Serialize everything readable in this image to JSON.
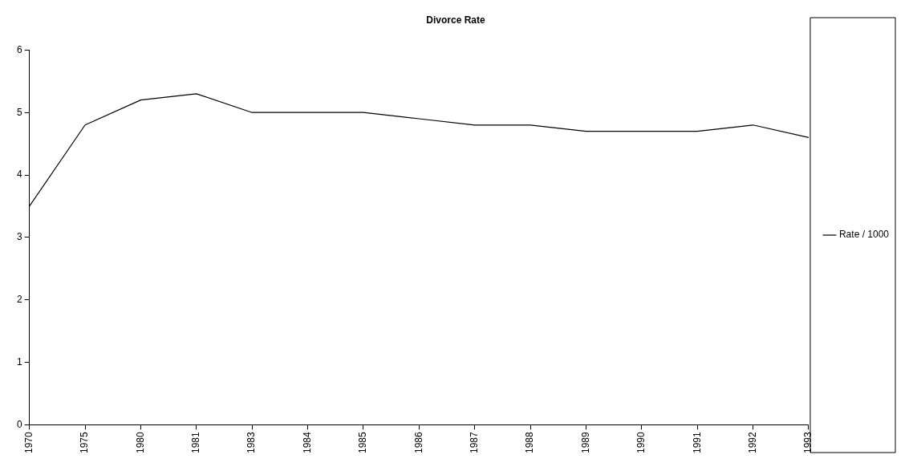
{
  "chart_data": {
    "type": "line",
    "title": "Divorce Rate",
    "categories": [
      "1970",
      "1975",
      "1980",
      "1981",
      "1983",
      "1984",
      "1985",
      "1986",
      "1987",
      "1988",
      "1989",
      "1990",
      "1991",
      "1992",
      "1993"
    ],
    "series": [
      {
        "name": "Rate / 1000",
        "color": "#000000",
        "values": [
          3.5,
          4.8,
          5.2,
          5.3,
          5.0,
          5.0,
          5.0,
          4.9,
          4.8,
          4.8,
          4.7,
          4.7,
          4.7,
          4.8,
          4.6
        ]
      }
    ],
    "ylim": [
      0,
      6
    ],
    "yticks": [
      0,
      1,
      2,
      3,
      4,
      5,
      6
    ],
    "legend": "right",
    "marker": "none",
    "line_style": "solid"
  }
}
